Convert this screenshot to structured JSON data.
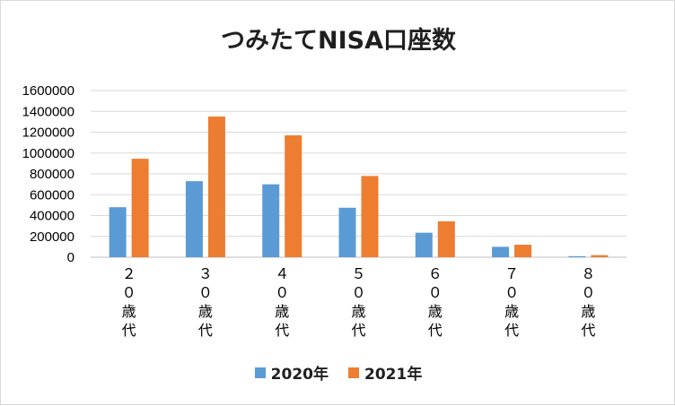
{
  "chart_data": {
    "type": "bar",
    "title": "つみたてNISA口座数",
    "categories": [
      "２０歳代",
      "３０歳代",
      "４０歳代",
      "５０歳代",
      "６０歳代",
      "７０歳代",
      "８０歳代"
    ],
    "series": [
      {
        "name": "2020年",
        "color": "#5b9bd5",
        "values": [
          480000,
          730000,
          700000,
          475000,
          235000,
          100000,
          10000
        ]
      },
      {
        "name": "2021年",
        "color": "#ed7d31",
        "values": [
          945000,
          1350000,
          1170000,
          780000,
          345000,
          120000,
          20000
        ]
      }
    ],
    "ylim": [
      0,
      1600000
    ],
    "yticks": [
      0,
      200000,
      400000,
      600000,
      800000,
      1000000,
      1200000,
      1400000,
      1600000
    ],
    "grid": true,
    "legend_position": "bottom"
  }
}
